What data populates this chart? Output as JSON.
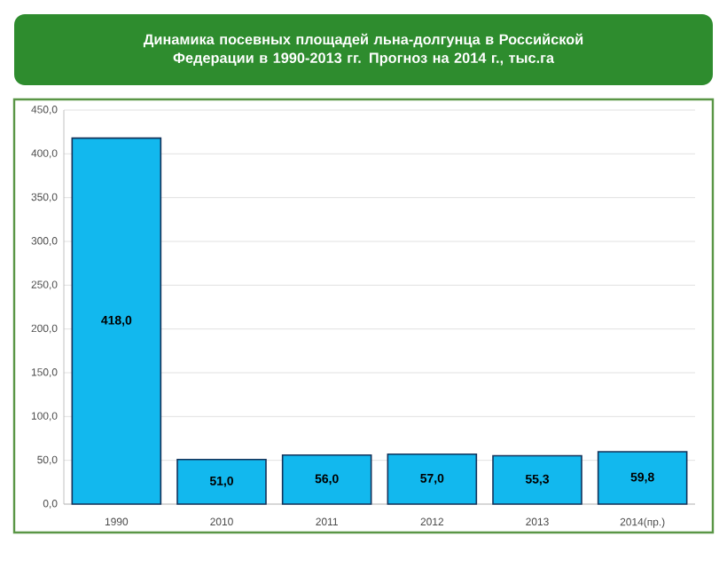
{
  "chart_data": {
    "type": "bar",
    "title": "Динамика посевных площадей льна-долгунца в Российской Федерации в 1990-2013 гг. Прогноз на 2014 г., тыс.га",
    "categories": [
      "1990",
      "2010",
      "2011",
      "2012",
      "2013",
      "2014(пр.)"
    ],
    "values": [
      418.0,
      51.0,
      56.0,
      57.0,
      55.3,
      59.8
    ],
    "value_labels": [
      "418,0",
      "51,0",
      "56,0",
      "57,0",
      "55,3",
      "59,8"
    ],
    "color": "#12b8ee",
    "ylim": [
      0,
      450
    ],
    "yticks": [
      {
        "value": 0,
        "label": "0,0"
      },
      {
        "value": 50,
        "label": "50,0"
      },
      {
        "value": 100,
        "label": "100,0"
      },
      {
        "value": 150,
        "label": "150,0"
      },
      {
        "value": 200,
        "label": "200,0"
      },
      {
        "value": 250,
        "label": "250,0"
      },
      {
        "value": 300,
        "label": "300,0"
      },
      {
        "value": 350,
        "label": "350,0"
      },
      {
        "value": 400,
        "label": "400,0"
      },
      {
        "value": 450,
        "label": "450,0"
      }
    ],
    "grid": "y"
  }
}
